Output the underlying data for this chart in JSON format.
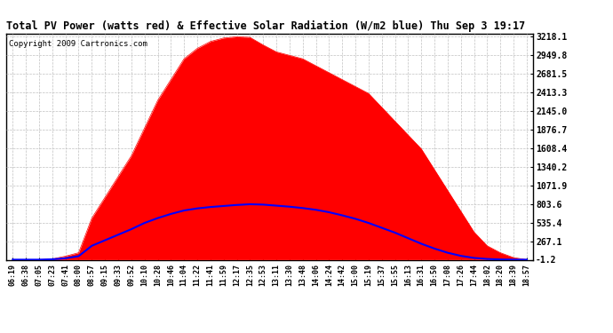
{
  "title": "Total PV Power (watts red) & Effective Solar Radiation (W/m2 blue) Thu Sep 3 19:17",
  "copyright": "Copyright 2009 Cartronics.com",
  "plot_bg_color": "#ffffff",
  "grid_color": "#c0c0c0",
  "y_ticks": [
    3218.1,
    2949.8,
    2681.5,
    2413.3,
    2145.0,
    1876.7,
    1608.4,
    1340.2,
    1071.9,
    803.6,
    535.4,
    267.1,
    -1.2
  ],
  "x_labels": [
    "06:19",
    "06:38",
    "07:05",
    "07:23",
    "07:41",
    "08:00",
    "08:57",
    "09:15",
    "09:33",
    "09:52",
    "10:10",
    "10:28",
    "10:46",
    "11:04",
    "11:22",
    "11:41",
    "11:59",
    "12:17",
    "12:35",
    "12:53",
    "13:11",
    "13:30",
    "13:48",
    "14:06",
    "14:24",
    "14:42",
    "15:00",
    "15:19",
    "15:37",
    "15:55",
    "16:13",
    "16:31",
    "16:50",
    "17:08",
    "17:26",
    "17:44",
    "18:02",
    "18:20",
    "18:39",
    "18:57"
  ],
  "pv_color": "#ff0000",
  "solar_color": "#0000ff",
  "y_min": -1.2,
  "y_max": 3218.1,
  "pv_values": [
    0,
    0,
    0,
    10,
    50,
    100,
    600,
    900,
    1200,
    1500,
    1900,
    2300,
    2600,
    2900,
    3050,
    3150,
    3200,
    3218,
    3210,
    3100,
    3000,
    2950,
    2900,
    2800,
    2700,
    2600,
    2500,
    2400,
    2200,
    2000,
    1800,
    1600,
    1300,
    1000,
    700,
    400,
    200,
    100,
    30,
    0
  ],
  "solar_values": [
    0,
    0,
    0,
    5,
    20,
    50,
    200,
    280,
    360,
    440,
    530,
    600,
    660,
    710,
    740,
    760,
    775,
    790,
    800,
    795,
    780,
    765,
    745,
    720,
    685,
    640,
    590,
    530,
    460,
    390,
    310,
    230,
    160,
    100,
    55,
    25,
    10,
    3,
    0,
    0
  ]
}
